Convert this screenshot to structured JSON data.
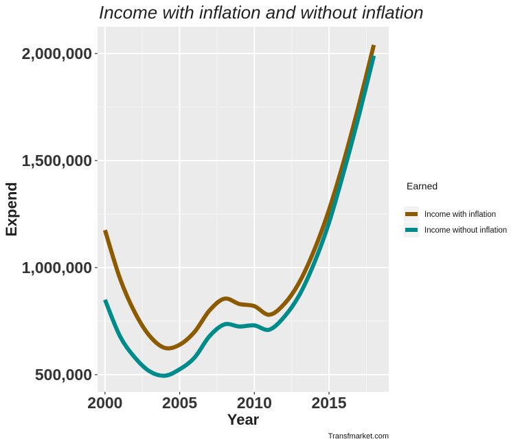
{
  "chart_data": {
    "type": "line",
    "title": "Income with inflation and without inflation",
    "xlabel": "Year",
    "ylabel": "Expend",
    "x_ticks": [
      "2000",
      "2005",
      "2010",
      "2015"
    ],
    "y_ticks": [
      "500,000",
      "1,000,000",
      "1,500,000",
      "2,000,000"
    ],
    "xlim": [
      1999.5,
      2019.0
    ],
    "ylim": [
      420000,
      2125000
    ],
    "grid": true,
    "legend": {
      "title": "Earned",
      "placement": "right"
    },
    "caption": "Transfmarket.com",
    "x": [
      2000,
      2001,
      2002,
      2003,
      2004,
      2005,
      2006,
      2007,
      2008,
      2009,
      2010,
      2011,
      2012,
      2013,
      2014,
      2015,
      2016,
      2017,
      2018
    ],
    "series": [
      {
        "name": "Income with inflation",
        "color": "#8C5A00",
        "values": [
          1175000,
          950000,
          790000,
          680000,
          625000,
          640000,
          700000,
          800000,
          855000,
          830000,
          820000,
          780000,
          830000,
          930000,
          1080000,
          1270000,
          1500000,
          1760000,
          2040000
        ]
      },
      {
        "name": "Income without inflation",
        "color": "#008B8B",
        "values": [
          850000,
          680000,
          580000,
          515000,
          495000,
          525000,
          580000,
          680000,
          735000,
          725000,
          730000,
          710000,
          770000,
          870000,
          1020000,
          1210000,
          1450000,
          1710000,
          1990000
        ]
      }
    ]
  }
}
